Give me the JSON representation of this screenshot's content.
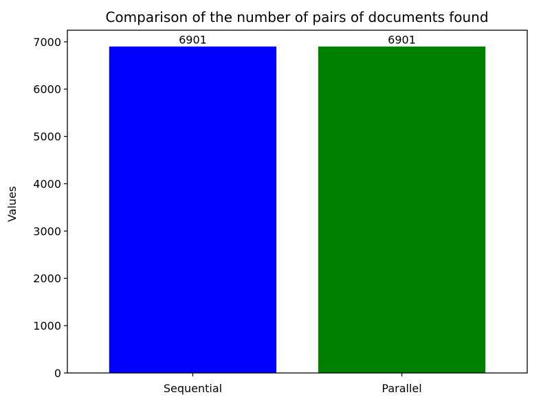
{
  "chart_data": {
    "type": "bar",
    "title": "Comparison of the number of pairs of documents found",
    "xlabel": "",
    "ylabel": "Values",
    "categories": [
      "Sequential",
      "Parallel"
    ],
    "values": [
      6901,
      6901
    ],
    "data_labels": [
      "6901",
      "6901"
    ],
    "colors": [
      "#0000ff",
      "#008000"
    ],
    "ylim": [
      0,
      7245
    ],
    "yticks": [
      0,
      1000,
      2000,
      3000,
      4000,
      5000,
      6000,
      7000
    ],
    "ytick_labels": [
      "0",
      "1000",
      "2000",
      "3000",
      "4000",
      "5000",
      "6000",
      "7000"
    ],
    "grid": false,
    "legend": "none"
  }
}
